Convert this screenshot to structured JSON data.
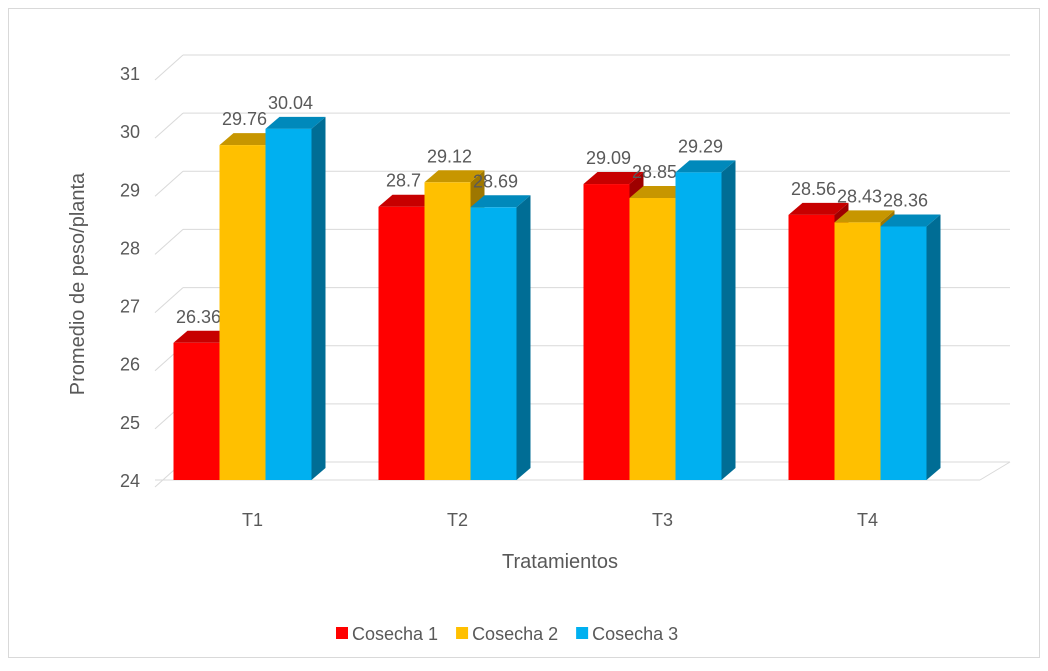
{
  "chart_data": {
    "type": "bar",
    "y_label": "Promedio de peso/planta",
    "x_label": "Tratamientos",
    "categories": [
      "T1",
      "T2",
      "T3",
      "T4"
    ],
    "series": [
      {
        "name": "Cosecha 1",
        "color": "#ff0000",
        "values": [
          26.36,
          28.7,
          29.09,
          28.56
        ]
      },
      {
        "name": "Cosecha 2",
        "color": "#ffc000",
        "values": [
          29.76,
          29.12,
          28.85,
          28.43
        ]
      },
      {
        "name": "Cosecha 3",
        "color": "#00b0f0",
        "values": [
          30.04,
          28.69,
          29.29,
          28.36
        ]
      }
    ],
    "ylim": [
      24,
      31
    ],
    "yticks": [
      24,
      25,
      26,
      27,
      28,
      29,
      30,
      31
    ],
    "grid": true,
    "legend": "bottom"
  }
}
